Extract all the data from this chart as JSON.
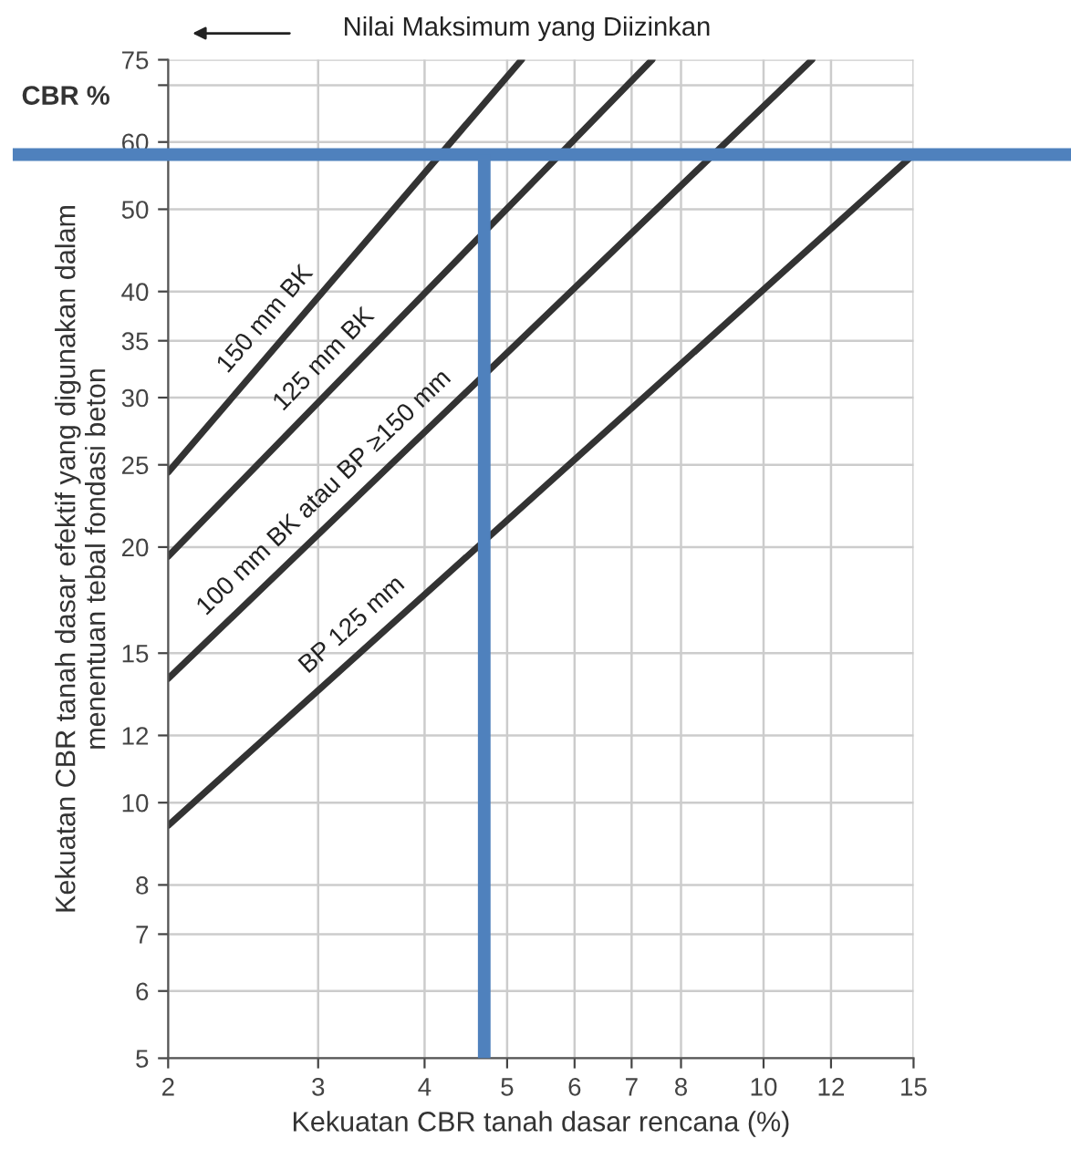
{
  "chart_data": {
    "type": "line",
    "xlabel": "Kekuatan CBR tanah dasar rencana (%)",
    "ylabel": "Kekuatan CBR tanah dasar efektif yang digunakan dalam\nmenentuan tebal fondasi beton",
    "annotations": [
      "Nilai Maksimum yang Diizinkan",
      "CBR %"
    ],
    "log": "xy",
    "xlim": [
      2,
      15
    ],
    "ylim": [
      5,
      75
    ],
    "xticks": [
      2,
      3,
      4,
      5,
      6,
      7,
      8,
      10,
      12,
      15
    ],
    "yticks": [
      5,
      6,
      7,
      8,
      10,
      12,
      15,
      20,
      25,
      30,
      35,
      40,
      50,
      60,
      {
        "value": 70,
        "label": null
      },
      75
    ],
    "grid": true,
    "marker": "none",
    "line_style": "solid",
    "series": [
      {
        "name": "150 mm BK",
        "color": "#333333",
        "x": [
          2,
          5.2
        ],
        "values": [
          24.5,
          75
        ]
      },
      {
        "name": "125 mm BK",
        "color": "#333333",
        "x": [
          2,
          7.4
        ],
        "values": [
          19.5,
          75
        ]
      },
      {
        "name": "100 mm BK atau BP ≥150 mm",
        "color": "#333333",
        "x": [
          2,
          11.4
        ],
        "values": [
          14,
          75
        ]
      },
      {
        "name": "BP 125 mm",
        "color": "#333333",
        "x": [
          2,
          15
        ],
        "values": [
          9.4,
          58
        ]
      }
    ],
    "ref_lines": [
      {
        "axis": "y",
        "value": 58,
        "label": null,
        "color": "#4f81bd",
        "line_style": "solid"
      },
      {
        "axis": "x",
        "value": 4.7,
        "label": null,
        "color": "#4f81bd",
        "line_style": "solid"
      }
    ]
  }
}
